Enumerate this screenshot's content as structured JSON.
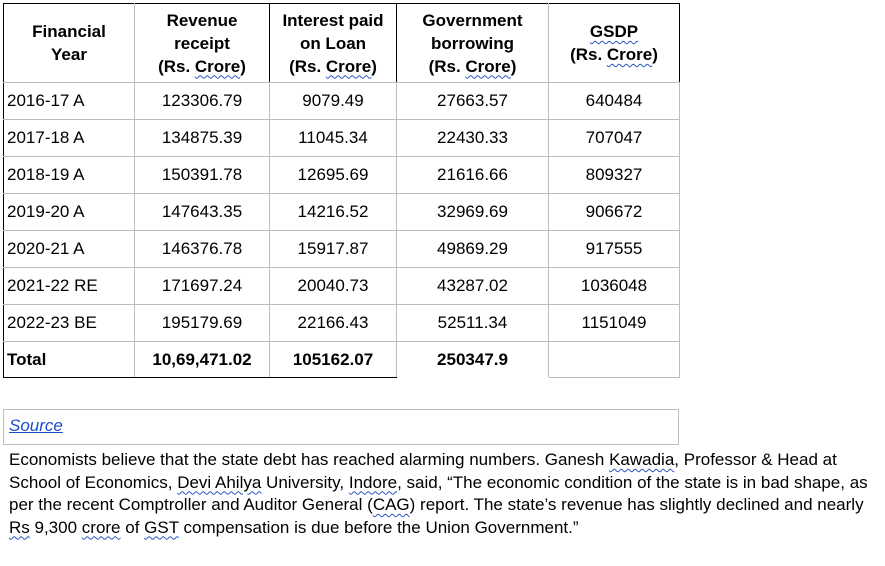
{
  "table": {
    "headers": [
      {
        "lines": [
          "Financial",
          "Year"
        ],
        "unit": ""
      },
      {
        "lines": [
          "Revenue",
          "receipt"
        ],
        "unit": "(Rs. Crore)"
      },
      {
        "lines": [
          "Interest paid",
          "on Loan"
        ],
        "unit": "(Rs. Crore)"
      },
      {
        "lines": [
          "Government",
          "borrowing"
        ],
        "unit": "(Rs. Crore)"
      },
      {
        "lines": [
          "GSDP"
        ],
        "unit": "(Rs. Crore)"
      }
    ],
    "rows": [
      [
        "2016-17 A",
        "123306.79",
        "9079.49",
        "27663.57",
        "640484"
      ],
      [
        "2017-18 A",
        "134875.39",
        "11045.34",
        "22430.33",
        "707047"
      ],
      [
        "2018-19 A",
        "150391.78",
        "12695.69",
        "21616.66",
        "809327"
      ],
      [
        "2019-20 A",
        "147643.35",
        "14216.52",
        "32969.69",
        "906672"
      ],
      [
        "2020-21 A",
        "146376.78",
        "15917.87",
        "49869.29",
        "917555"
      ],
      [
        "2021-22 RE",
        "171697.24",
        "20040.73",
        "43287.02",
        "1036048"
      ],
      [
        "2022-23 BE",
        "195179.69",
        "22166.43",
        "52511.34",
        "1151049"
      ]
    ],
    "total": [
      "Total",
      "10,69,471.02",
      "105162.07",
      "250347.9",
      ""
    ]
  },
  "source": {
    "label": "Source"
  },
  "paragraph": {
    "p1": "Economists believe that the state debt has reached alarming numbers. Ganesh ",
    "w1": "Kawadia",
    "p2": ", Professor & Head at School of Economics, ",
    "w2": "Devi Ahilya",
    "p3": " University, ",
    "w3": "Indore",
    "p4": ", said, “The economic condition of the state is in bad shape, as per the recent Comptroller and Auditor General (",
    "w4": "CAG",
    "p5": ") report. The state’s revenue has slightly declined and nearly ",
    "w5": "Rs",
    "p6": " 9,300 ",
    "w6": "crore",
    "p7": " of ",
    "w7": "GST",
    "p8": " compensation is due before the Union Government.”"
  }
}
